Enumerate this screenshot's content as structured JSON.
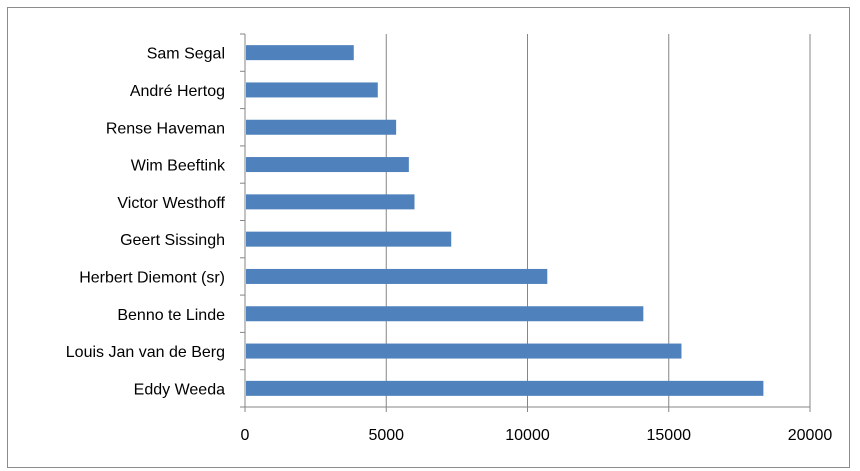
{
  "chart_data": {
    "type": "bar",
    "orientation": "horizontal",
    "title": "",
    "xlabel": "",
    "ylabel": "",
    "categories": [
      "Sam Segal",
      "André Hertog",
      "Rense Haveman",
      "Wim Beeftink",
      "Victor Westhoff",
      "Geert Sissingh",
      "Herbert Diemont (sr)",
      "Benno te Linde",
      "Louis Jan van de Berg",
      "Eddy Weeda"
    ],
    "values": [
      3850,
      4700,
      5350,
      5800,
      6000,
      7300,
      10700,
      14100,
      15450,
      18350
    ],
    "xlim": [
      0,
      20000
    ],
    "xticks": [
      "0",
      "5000",
      "10000",
      "15000",
      "20000"
    ],
    "grid": "vertical major gridlines",
    "legend": "none",
    "bar_color": "#4f81bd"
  }
}
